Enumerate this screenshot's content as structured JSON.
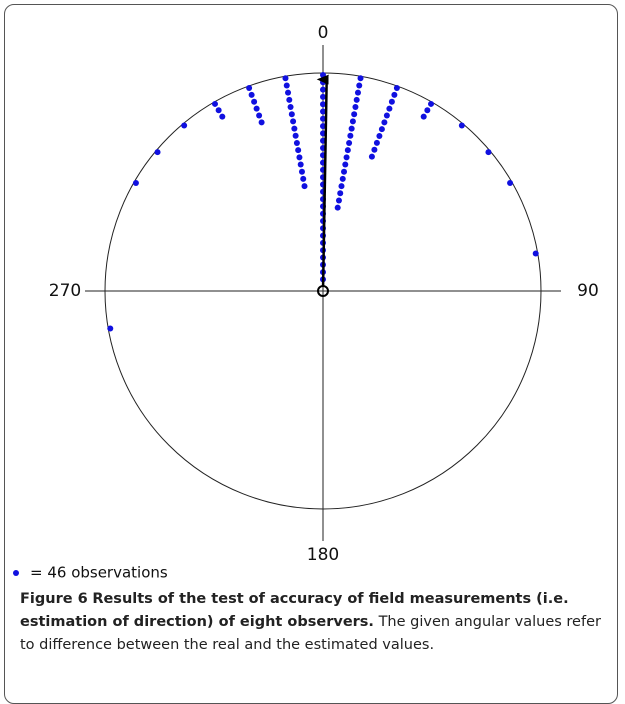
{
  "chart_data": {
    "type": "circular-dot",
    "angles": [
      0,
      10,
      350,
      20,
      340,
      30,
      330,
      40,
      50,
      60,
      80,
      320,
      310,
      300,
      260
    ],
    "values": [
      29,
      19,
      16,
      11,
      6,
      3,
      3,
      1,
      1,
      1,
      1,
      1,
      1,
      1,
      1
    ],
    "color": "#1010e0",
    "angle_ticks": [
      0,
      90,
      180,
      270
    ],
    "mean_vector": {
      "angle": 1,
      "length": 0.97
    },
    "legend": "= 46 observations"
  },
  "caption": {
    "label": "Figure 6",
    "title": "Results of the test of accuracy of field measurements (i.e. estimation of direction) of eight observers.",
    "text": "The given angular values refer to difference between the real and the estimated values."
  }
}
